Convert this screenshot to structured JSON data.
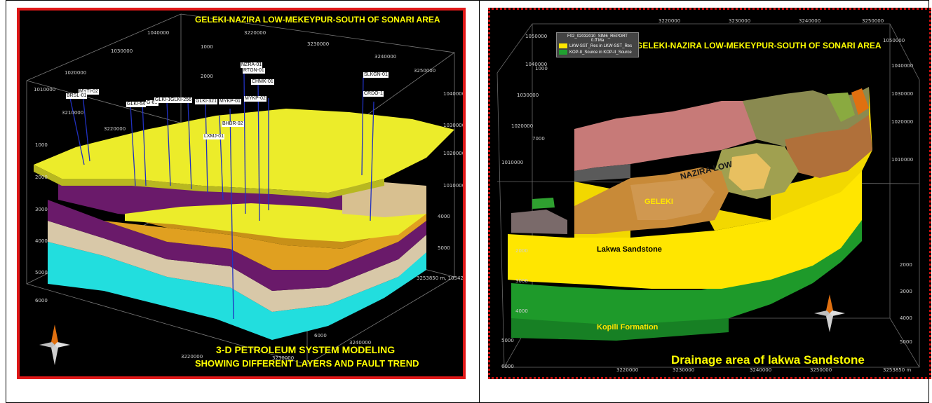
{
  "left_panel": {
    "title": "GELEKI-NAZIRA LOW-MEKEYPUR-SOUTH OF SONARI AREA",
    "caption_line1": "3-D PETROLEUM SYSTEM MODELING",
    "caption_line2": "SHOWING DIFFERENT LAYERS AND FAULT TREND",
    "wells": [
      "NZRA-01",
      "RTGN-01",
      "CHMK-01",
      "SLKGN-01",
      "MYTI-02",
      "BRSL-01",
      "GLKI-54",
      "G-80",
      "GLKI-1",
      "GLKI-256",
      "GLKI-321",
      "MYKP-01",
      "MYKP-02",
      "CRDO-1",
      "BHBR-02",
      "LXMJ-01"
    ],
    "axis_labels": [
      "1040000",
      "1030000",
      "1020000",
      "1010000",
      "1000",
      "2000",
      "3220000",
      "3230000",
      "3240000",
      "3250000",
      "3253850 m, 1054200 m",
      "3210000",
      "3220000",
      "1000",
      "2000",
      "3000",
      "4000",
      "5000",
      "6000",
      "1040000",
      "1030000",
      "1020000",
      "1010000",
      "4000",
      "5000",
      "6000",
      "3240000",
      "3230000",
      "3220000"
    ],
    "colors": {
      "yellow": "#ecec2a",
      "purple": "#6a1a6a",
      "cyan": "#22dede",
      "orange": "#e0a020",
      "tan": "#d8c8a8",
      "frame": "#e01818"
    }
  },
  "right_panel": {
    "title": "GELEKI-NAZIRA LOW-MEKEYPUR-SOUTH OF SONARI AREA",
    "legend_title": "F02_02032010_SIM6_REPORT",
    "legend_time": "0.0 Ma",
    "legend_items": [
      {
        "label": "LKW-SST_Res in LKW-SST_Res",
        "color": "#ffe600"
      },
      {
        "label": "KOP-II_Source in KOP-II_Source",
        "color": "#20a030"
      }
    ],
    "labels": {
      "nazira": "NAZIRA LOW",
      "geleki": "GELEKI",
      "lakwa": "Lakwa Sandstone",
      "kopili": "Kopili Formation"
    },
    "caption": "Drainage area of lakwa Sandstone",
    "axis_labels": [
      "3220000",
      "3230000",
      "3240000",
      "3250000",
      "1050000",
      "1040000",
      "1030000",
      "1020000",
      "1010000",
      "2000",
      "3000",
      "4000",
      "5000",
      "6000",
      "7000",
      "1000",
      "1050000",
      "1040000",
      "1030000",
      "1020000",
      "1010000",
      "2000",
      "3000",
      "4000",
      "5000",
      "3250000",
      "3253850 m",
      "3220000",
      "3230000",
      "3240000"
    ],
    "colors": {
      "yellow": "#ffe600",
      "green": "#1e9a2a",
      "pink": "#c77a78",
      "olive": "#8a8a50",
      "orange": "#d08030",
      "frame": "#cc1010"
    }
  }
}
